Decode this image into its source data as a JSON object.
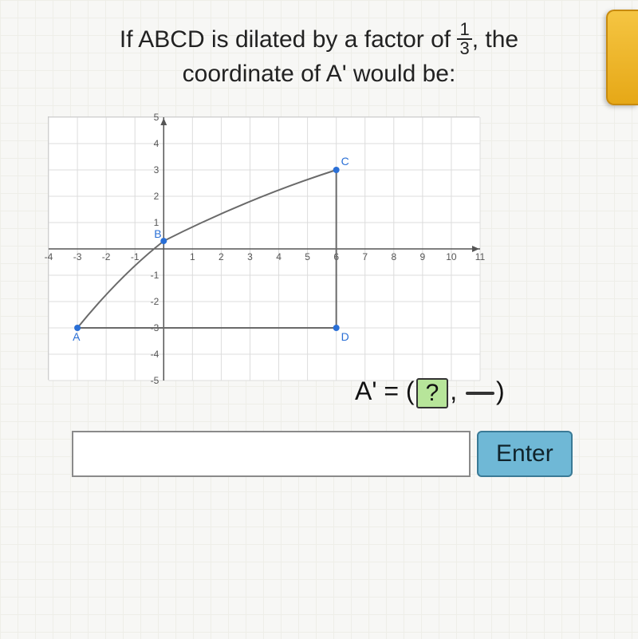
{
  "question": {
    "line1_pre": "If ABCD is dilated by a factor of ",
    "frac_num": "1",
    "frac_den": "3",
    "line1_post": ", the",
    "line2": "coordinate of A' would be:"
  },
  "chart": {
    "type": "line",
    "xlim": [
      -4,
      11
    ],
    "ylim": [
      -5,
      5
    ],
    "xtick_step": 1,
    "ytick_step": 1,
    "x_ticks": [
      -4,
      -3,
      -2,
      -1,
      1,
      2,
      3,
      4,
      5,
      6,
      7,
      8,
      9,
      10,
      11
    ],
    "y_ticks": [
      -5,
      -4,
      -3,
      -2,
      -1,
      1,
      2,
      3,
      4,
      5
    ],
    "grid_color": "#dcdcdc",
    "axis_color": "#555555",
    "tick_label_color": "#555555",
    "tick_fontsize": 12,
    "background_color": "#ffffff",
    "line_color": "#6a6a6a",
    "line_width": 2,
    "point_color": "#2a6fd6",
    "point_label_color": "#2a6fd6",
    "point_label_fontsize": 14,
    "points": {
      "A": {
        "x": -3,
        "y": -3
      },
      "B": {
        "x": 0,
        "y": 0.3
      },
      "C": {
        "x": 6,
        "y": 3
      },
      "D": {
        "x": 6,
        "y": -3
      }
    },
    "edges": [
      [
        "B",
        "C"
      ],
      [
        "C",
        "D"
      ],
      [
        "D",
        "A"
      ],
      [
        "A",
        "B"
      ]
    ],
    "axis_arrow": true
  },
  "answer": {
    "prefix": "A' = (",
    "slot1": "?",
    "mid": ",",
    "slot2": " ",
    "suffix": ")"
  },
  "input": {
    "value": "",
    "placeholder": ""
  },
  "buttons": {
    "enter": "Enter"
  },
  "colors": {
    "page_bg": "#f7f7f5",
    "grid_line": "#eeeee8",
    "tab_top": "#f5c542",
    "tab_bottom": "#e6a817",
    "tab_border": "#c78a0e",
    "enter_bg": "#6fb8d6",
    "enter_border": "#3a7a96",
    "slot_active_bg": "#b7e59a",
    "slot_inactive_bg": "#e9e9e9"
  }
}
